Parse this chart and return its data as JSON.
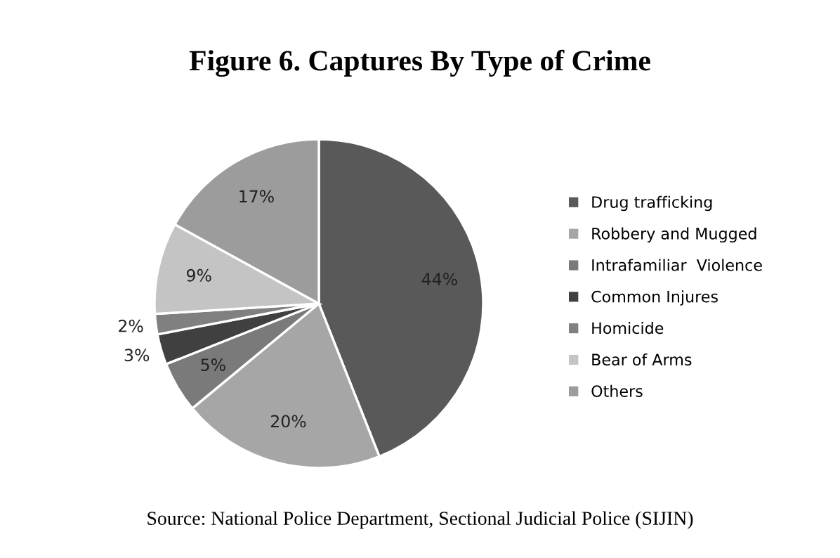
{
  "chart_data": {
    "type": "pie",
    "title": "Figure 6. Captures By Type of Crime",
    "categories": [
      "Drug trafficking",
      "Robbery and Mugged",
      "Intrafamiliar  Violence",
      "Common Injures",
      "Homicide",
      "Bear of Arms",
      "Others"
    ],
    "values": [
      44,
      20,
      5,
      3,
      2,
      9,
      17
    ],
    "colors": [
      "#595959",
      "#a6a6a6",
      "#7a7a7a",
      "#404040",
      "#808080",
      "#c4c4c4",
      "#9c9c9c"
    ],
    "value_labels": [
      "44%",
      "20%",
      "5%",
      "3%",
      "2%",
      "9%",
      "17%"
    ],
    "legend": "right",
    "annotations": [
      "Source: National Police Department, Sectional Judicial Police (SIJIN)"
    ]
  }
}
